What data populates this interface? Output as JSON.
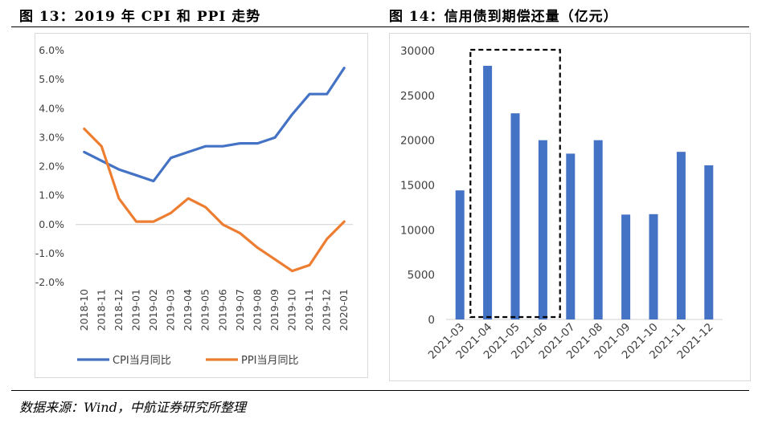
{
  "figure1": {
    "title": "图 13：2019 年 CPI 和 PPI 走势",
    "chart_data": {
      "type": "line",
      "categories": [
        "2018-10",
        "2018-11",
        "2018-12",
        "2019-01",
        "2019-02",
        "2019-03",
        "2019-04",
        "2019-05",
        "2019-06",
        "2019-07",
        "2019-08",
        "2019-09",
        "2019-10",
        "2019-11",
        "2019-12",
        "2020-01"
      ],
      "series": [
        {
          "name": "CPI当月同比",
          "color": "#4472c4",
          "values": [
            2.5,
            2.2,
            1.9,
            1.7,
            1.5,
            2.3,
            2.5,
            2.7,
            2.7,
            2.8,
            2.8,
            3.0,
            3.8,
            4.5,
            4.5,
            5.4
          ]
        },
        {
          "name": "PPI当月同比",
          "color": "#ed7d31",
          "values": [
            3.3,
            2.7,
            0.9,
            0.1,
            0.1,
            0.4,
            0.9,
            0.6,
            0.0,
            -0.3,
            -0.8,
            -1.2,
            -1.6,
            -1.4,
            -0.5,
            0.1
          ]
        }
      ],
      "yticks": [
        "6.0%",
        "5.0%",
        "4.0%",
        "3.0%",
        "2.0%",
        "1.0%",
        "0.0%",
        "-1.0%",
        "-2.0%"
      ],
      "ylim": [
        -2,
        6
      ],
      "ytick_step": 1,
      "legend_position": "bottom",
      "grid": false
    }
  },
  "figure2": {
    "title": "图 14：信用债到期偿还量（亿元）",
    "chart_data": {
      "type": "bar",
      "categories": [
        "2021-03",
        "2021-04",
        "2021-05",
        "2021-06",
        "2021-07",
        "2021-08",
        "2021-09",
        "2021-10",
        "2021-11",
        "2021-12"
      ],
      "values": [
        14400,
        28300,
        23000,
        20000,
        18500,
        20000,
        11700,
        11750,
        18700,
        17200
      ],
      "color": "#4472c4",
      "yticks": [
        "30000",
        "25000",
        "20000",
        "15000",
        "10000",
        "5000",
        "0"
      ],
      "ylim": [
        0,
        30000
      ],
      "ytick_step": 5000,
      "highlight_categories": [
        "2021-04",
        "2021-05",
        "2021-06"
      ],
      "grid": false
    }
  },
  "source_note": "数据来源：Wind，中航证券研究所整理"
}
